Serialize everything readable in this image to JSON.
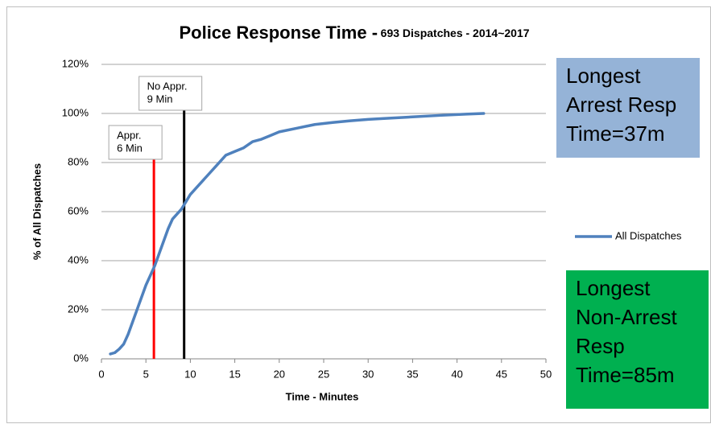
{
  "chart_data": {
    "type": "line",
    "title": "Police Response Time -",
    "subtitle": "693 Dispatches - 2014~2017",
    "x_label": "Time - Minutes",
    "y_label": "% of All Dispatches",
    "xlim": [
      0,
      50
    ],
    "xticks": [
      0,
      5,
      10,
      15,
      20,
      25,
      30,
      35,
      40,
      45,
      50
    ],
    "ylim": [
      0,
      120
    ],
    "yticks": [
      {
        "value": 0,
        "label": "0%"
      },
      {
        "value": 20,
        "label": "20%"
      },
      {
        "value": 40,
        "label": "40%"
      },
      {
        "value": 60,
        "label": "60%"
      },
      {
        "value": 80,
        "label": "80%"
      },
      {
        "value": 100,
        "label": "100%"
      },
      {
        "value": 120,
        "label": "120%"
      }
    ],
    "grid": true,
    "legend": "right",
    "series": [
      {
        "name": "All Dispatches",
        "color": "#4f81bd",
        "x": [
          1,
          1.5,
          2,
          2.5,
          3,
          3.5,
          4,
          4.5,
          5,
          5.5,
          6,
          6.5,
          7,
          7.5,
          8,
          8.5,
          9,
          9.5,
          10,
          11,
          12,
          13,
          14,
          15,
          16,
          17,
          18,
          19,
          20,
          22,
          24,
          26,
          28,
          30,
          32,
          35,
          38,
          41,
          43
        ],
        "values": [
          2,
          2.5,
          4,
          6,
          10,
          15,
          20,
          25,
          30,
          34,
          38,
          43,
          48,
          53,
          57,
          59,
          61,
          64,
          67,
          71,
          75,
          79,
          83,
          84.5,
          86,
          88.5,
          89.5,
          91,
          92.5,
          94,
          95.5,
          96.3,
          97,
          97.6,
          98,
          98.6,
          99.2,
          99.7,
          100
        ]
      }
    ],
    "reference_lines": [
      {
        "x": 5.9,
        "color": "#ff0000",
        "label": [
          "Appr.",
          "6 Min"
        ]
      },
      {
        "x": 9.3,
        "color": "#000000",
        "label": [
          "No Appr.",
          "9 Min"
        ]
      }
    ],
    "annotations": [
      {
        "color": "#95b3d7",
        "lines": [
          "Longest",
          "Arrest Resp",
          "Time=37m"
        ]
      },
      {
        "color": "#00b050",
        "lines": [
          "Longest",
          "Non-Arrest",
          "Resp",
          "Time=85m"
        ]
      }
    ]
  }
}
